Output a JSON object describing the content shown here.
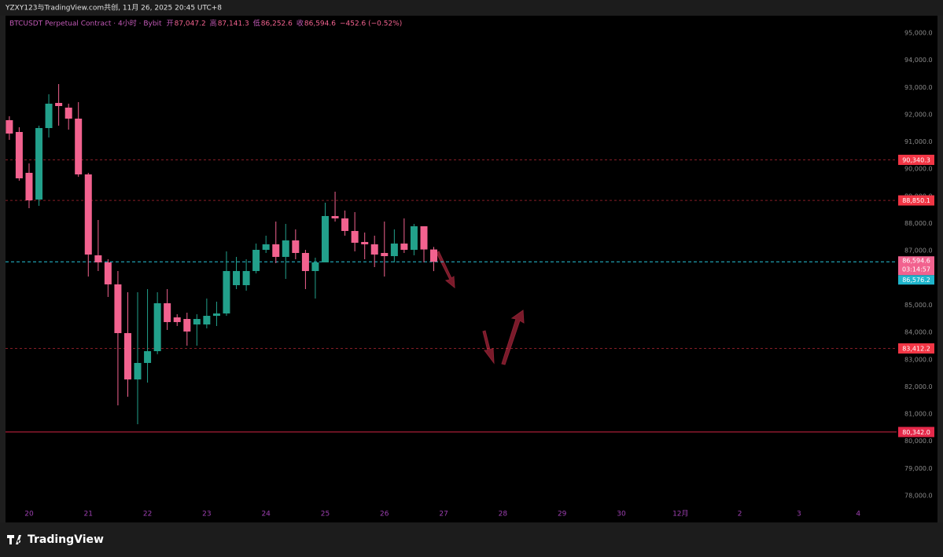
{
  "header": {
    "text": "YZXY123与TradingView.com共创, 11月 26, 2025 20:45 UTC+8"
  },
  "footer": {
    "brand": "TradingView"
  },
  "chart_data": {
    "type": "candlestick",
    "legend": {
      "symbol": "BTCUSDT Perpetual Contract · 4小时 · Bybit",
      "open_label": "开",
      "open": "87,047.2",
      "high_label": "高",
      "high": "87,141.3",
      "low_label": "低",
      "low": "86,252.6",
      "close_label": "收",
      "close": "86,594.6",
      "change": "−452.6 (−0.52%)"
    },
    "x": [
      19.667,
      19.833,
      20,
      20.167,
      20.333,
      20.5,
      20.667,
      20.833,
      21,
      21.167,
      21.333,
      21.5,
      21.667,
      21.833,
      22,
      22.167,
      22.333,
      22.5,
      22.667,
      22.833,
      23,
      23.167,
      23.333,
      23.5,
      23.667,
      23.833,
      24,
      24.167,
      24.333,
      24.5,
      24.667,
      24.833,
      25,
      25.167,
      25.333,
      25.5,
      25.667,
      25.833,
      26,
      26.167,
      26.333,
      26.5,
      26.667,
      26.833
    ],
    "open": [
      91797,
      91364,
      89863,
      88882,
      91508,
      92431,
      92258,
      91854,
      89805,
      86833,
      86573,
      85765,
      83975,
      82273,
      82879,
      83312,
      85072,
      84553,
      84495,
      84293,
      84293,
      84610,
      84697,
      85736,
      85736,
      86255,
      87035,
      87237,
      86775,
      87381,
      86919,
      86255,
      86573,
      88276,
      88189,
      87727,
      87323,
      87237,
      86919,
      86803,
      87265,
      87035,
      87900,
      87047.2
    ],
    "high": [
      91941,
      91537,
      90209,
      91595,
      92749,
      93124,
      92403,
      92460,
      89863,
      88131,
      86688,
      86255,
      85476,
      85476,
      85592,
      85476,
      85592,
      84668,
      84726,
      84668,
      85245,
      85130,
      86977,
      86775,
      86688,
      87265,
      87554,
      88073,
      87987,
      87785,
      87035,
      86746,
      88766,
      89170,
      88478,
      88420,
      87670,
      87554,
      88073,
      87785,
      88189,
      87987,
      87900,
      87141.3
    ],
    "low": [
      91075,
      89574,
      88564,
      88651,
      91162,
      91595,
      91450,
      89719,
      86053,
      86255,
      85303,
      81320,
      81638,
      80628,
      82157,
      83200,
      84091,
      84235,
      83514,
      83514,
      84149,
      84235,
      84610,
      85592,
      85534,
      86168,
      86919,
      86544,
      85967,
      86688,
      85592,
      85245,
      86573,
      88073,
      87554,
      86977,
      86688,
      86400,
      86053,
      86573,
      86919,
      86833,
      86573,
      86252.6
    ],
    "close": [
      91306,
      89661,
      88853,
      91508,
      92403,
      92316,
      91854,
      89805,
      86861,
      86573,
      85765,
      83975,
      82273,
      82879,
      83312,
      85072,
      84380,
      84380,
      84033,
      84495,
      84610,
      84697,
      86255,
      86255,
      86255,
      87035,
      87237,
      86775,
      87381,
      86919,
      86255,
      86573,
      88276,
      88189,
      87727,
      87294,
      87237,
      86861,
      86803,
      87265,
      87035,
      87900,
      87047,
      86594.6
    ],
    "up_color": "#22a08b",
    "down_color": "#f2628f",
    "xlim": [
      19.602,
      34.648
    ],
    "xticks": [
      20,
      21,
      22,
      23,
      24,
      25,
      26,
      27,
      28,
      29,
      30,
      {
        "value": 31,
        "label": "12月"
      },
      {
        "value": 32,
        "label": "2"
      },
      {
        "value": 33,
        "label": "3"
      },
      {
        "value": 34,
        "label": "4"
      }
    ],
    "ylim": [
      77020,
      95635
    ],
    "yticks": [
      {
        "value": 78000,
        "label": "78,000.0"
      },
      {
        "value": 79000,
        "label": "79,000.0"
      },
      {
        "value": 80000,
        "label": "80,000.0"
      },
      {
        "value": 81000,
        "label": "81,000.0"
      },
      {
        "value": 82000,
        "label": "82,000.0"
      },
      {
        "value": 83000,
        "label": "83,000.0"
      },
      {
        "value": 84000,
        "label": "84,000.0"
      },
      {
        "value": 85000,
        "label": "85,000.0"
      },
      {
        "value": 86000,
        "label": "86,000.0"
      },
      {
        "value": 87000,
        "label": "87,000.0"
      },
      {
        "value": 88000,
        "label": "88,000.0"
      },
      {
        "value": 89000,
        "label": "89,000.0"
      },
      {
        "value": 90000,
        "label": "90,000.0"
      },
      {
        "value": 91000,
        "label": "91,000.0"
      },
      {
        "value": 92000,
        "label": "92,000.0"
      },
      {
        "value": 93000,
        "label": "93,000.0"
      },
      {
        "value": 94000,
        "label": "94,000.0"
      },
      {
        "value": 95000,
        "label": "95,000.0"
      }
    ],
    "grid": false,
    "price_lines": [
      {
        "value": 90340.3,
        "label": "90,340.3",
        "style": "dashed",
        "color": "#f23645"
      },
      {
        "value": 88850.1,
        "label": "88,850.1",
        "style": "dashed",
        "color": "#f23645"
      },
      {
        "value": 83412.2,
        "label": "83,412.2",
        "style": "dashed",
        "color": "#f23645"
      },
      {
        "value": 80342.0,
        "label": "80,342.0",
        "style": "solid",
        "color": "#e5294a"
      }
    ],
    "last_price": {
      "value": 86594.6,
      "label": "86,594.6",
      "countdown": "03:14:57",
      "color": "#f2628f",
      "line_color": "#26c6da"
    },
    "bid_price": {
      "value": 86576.2,
      "label": "86,576.2",
      "color": "#1fb5cc"
    }
  }
}
